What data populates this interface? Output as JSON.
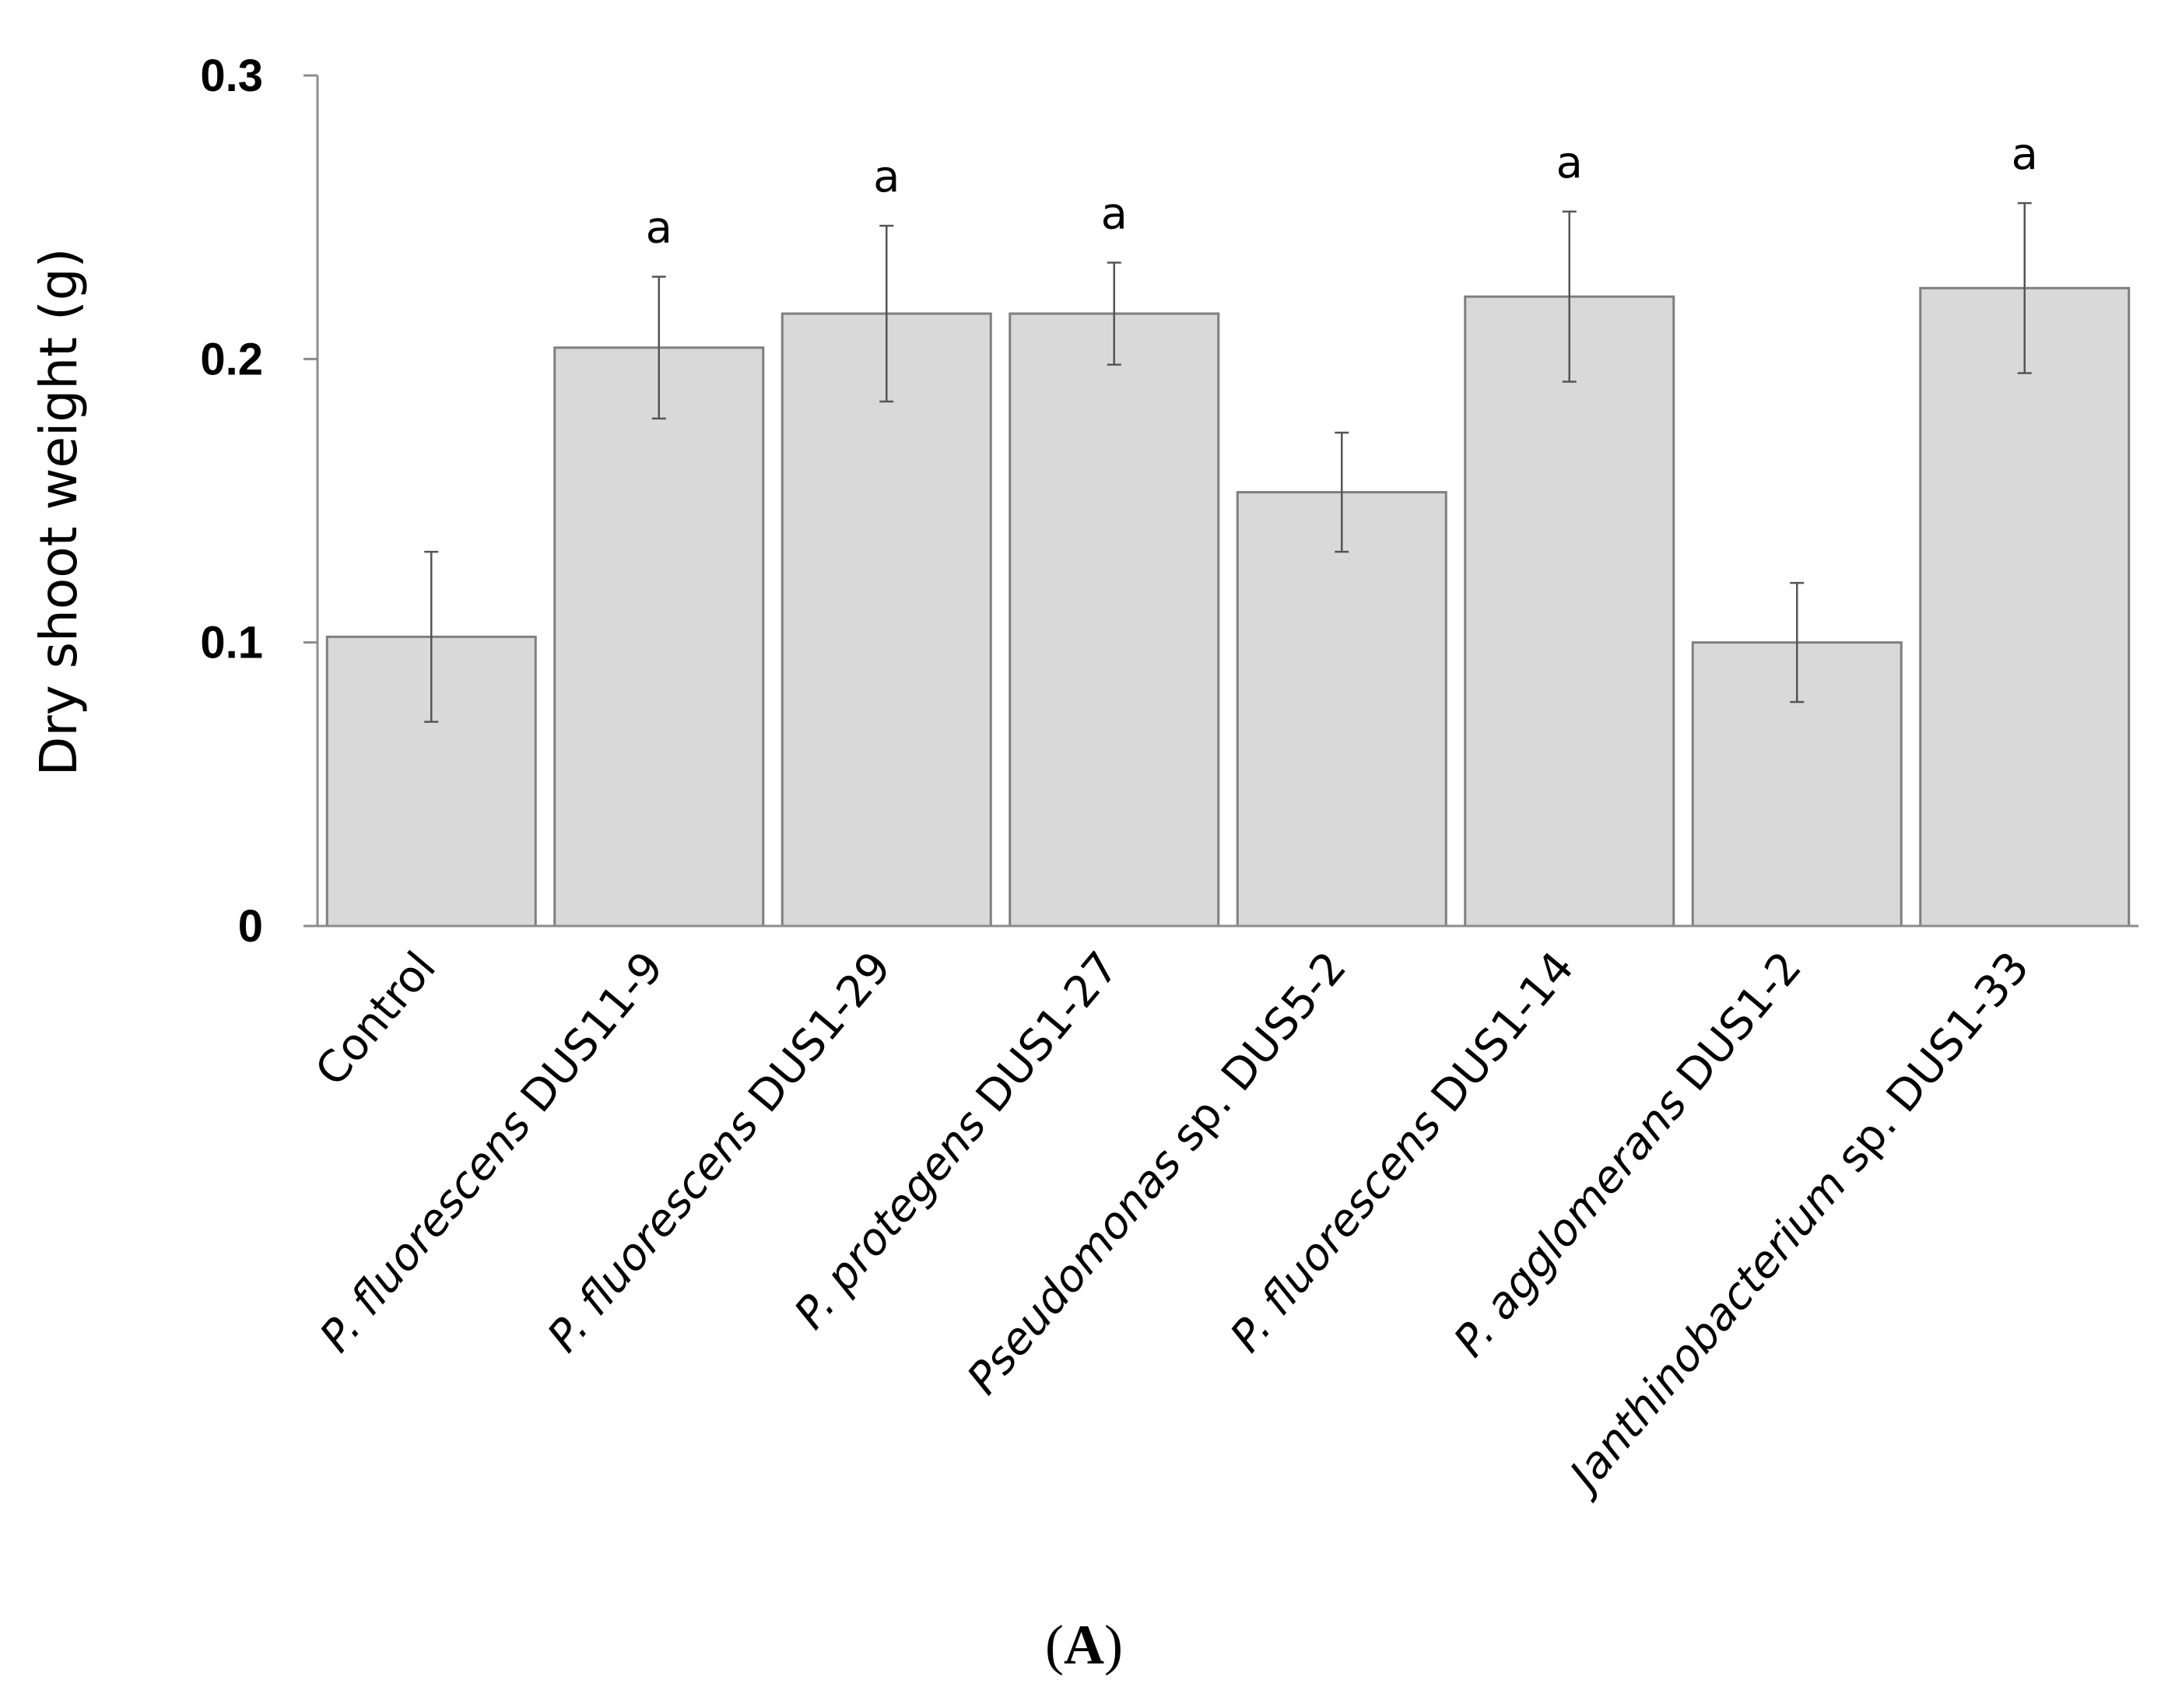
{
  "chart_data": {
    "type": "bar",
    "title": "",
    "xlabel": "",
    "ylabel": "Dry shoot weight (g)",
    "ylim": [
      0,
      0.3
    ],
    "yticks": [
      "0",
      "0.1",
      "0.2",
      "0.3"
    ],
    "grid": false,
    "categories": [
      {
        "italic": "",
        "plain": "Control"
      },
      {
        "italic": "P. fluorescens",
        "plain": " DUS11-9"
      },
      {
        "italic": "P. fluorescens",
        "plain": " DUS1-29"
      },
      {
        "italic": "P. protegens",
        "plain": " DUS1-27"
      },
      {
        "italic": "Pseudomonas",
        "plain": " sp. DUS5-2"
      },
      {
        "italic": "P. fluorescens",
        "plain": " DUS1-14"
      },
      {
        "italic": "P. agglomerans",
        "plain": " DUS1-2"
      },
      {
        "italic": "Janthinobacterium",
        "plain": " sp. DUS1-33"
      }
    ],
    "values": [
      0.102,
      0.204,
      0.216,
      0.216,
      0.153,
      0.222,
      0.1,
      0.225
    ],
    "errors": [
      0.03,
      0.025,
      0.031,
      0.018,
      0.021,
      0.03,
      0.021,
      0.03
    ],
    "significance": [
      "",
      "a",
      "a",
      "a",
      "",
      "a",
      "",
      "a"
    ],
    "colors": {
      "bar_fill": "#d9d9d9",
      "bar_stroke": "#7f7f7f",
      "axis": "#8c8c8c"
    }
  },
  "caption": {
    "open": "(",
    "letter": "A",
    "close": ")"
  }
}
